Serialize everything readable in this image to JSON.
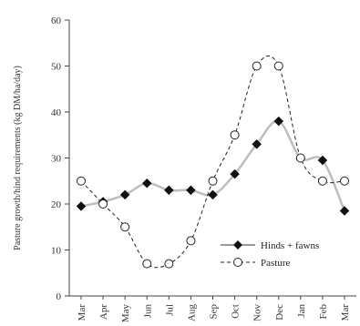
{
  "chart_data": {
    "type": "line",
    "title": "",
    "xlabel": "",
    "ylabel": "Pasture growth/hind requirements (kg DM/ha/day)",
    "categories": [
      "Mar",
      "Apr",
      "May",
      "Jun",
      "Jul",
      "Aug",
      "Sep",
      "Oct",
      "Nov",
      "Dec",
      "Jan",
      "Feb",
      "Mar"
    ],
    "yticks": [
      0,
      10,
      20,
      30,
      40,
      50,
      60
    ],
    "ylim": [
      0,
      60
    ],
    "grid": false,
    "legend_position": "bottom-right",
    "series": [
      {
        "name": "Hinds + fawns",
        "marker": "diamond-filled",
        "line": "solid",
        "color": "#bdbdbd",
        "values": [
          19.5,
          20.5,
          22,
          24.5,
          23,
          23,
          22,
          26.5,
          33,
          38,
          30,
          29.5,
          18.5
        ]
      },
      {
        "name": "Pasture",
        "marker": "circle-open",
        "line": "dashed",
        "color": "#222222",
        "values": [
          25,
          20,
          15,
          7,
          7,
          12,
          25,
          35,
          50,
          50,
          30,
          25,
          25
        ]
      }
    ]
  }
}
